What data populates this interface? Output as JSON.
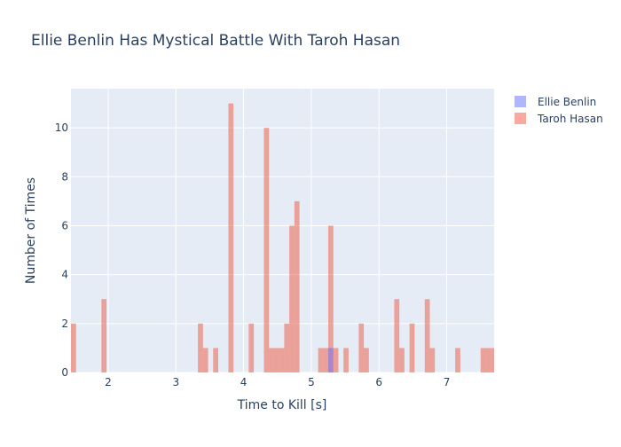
{
  "chart_data": {
    "type": "bar",
    "title": "Ellie Benlin Has Mystical Battle With Taroh Hasan",
    "xlabel": "Time to Kill [s]",
    "ylabel": "Number of Times",
    "xlim": [
      1.45,
      7.7
    ],
    "ylim": [
      0,
      11.6
    ],
    "x_ticks": [
      2,
      3,
      4,
      5,
      6,
      7
    ],
    "y_ticks": [
      0,
      2,
      4,
      6,
      8,
      10
    ],
    "bin_width": 0.075,
    "grid": true,
    "legend_position": "top-right",
    "series": [
      {
        "name": "Ellie Benlin",
        "color": "#636efa",
        "bins": [
          {
            "x0": 5.25,
            "x1": 5.325,
            "count": 1
          }
        ]
      },
      {
        "name": "Taroh Hasan",
        "color": "#ef553b",
        "bins": [
          {
            "x0": 1.45,
            "x1": 1.525,
            "count": 2
          },
          {
            "x0": 1.9,
            "x1": 1.975,
            "count": 3
          },
          {
            "x0": 3.325,
            "x1": 3.4,
            "count": 2
          },
          {
            "x0": 3.4,
            "x1": 3.475,
            "count": 1
          },
          {
            "x0": 3.55,
            "x1": 3.625,
            "count": 1
          },
          {
            "x0": 3.775,
            "x1": 3.85,
            "count": 11
          },
          {
            "x0": 4.075,
            "x1": 4.15,
            "count": 2
          },
          {
            "x0": 4.3,
            "x1": 4.375,
            "count": 10
          },
          {
            "x0": 4.375,
            "x1": 4.45,
            "count": 1
          },
          {
            "x0": 4.45,
            "x1": 4.525,
            "count": 1
          },
          {
            "x0": 4.525,
            "x1": 4.6,
            "count": 1
          },
          {
            "x0": 4.6,
            "x1": 4.675,
            "count": 2
          },
          {
            "x0": 4.675,
            "x1": 4.75,
            "count": 6
          },
          {
            "x0": 4.75,
            "x1": 4.825,
            "count": 7
          },
          {
            "x0": 5.1,
            "x1": 5.175,
            "count": 1
          },
          {
            "x0": 5.175,
            "x1": 5.25,
            "count": 1
          },
          {
            "x0": 5.25,
            "x1": 5.325,
            "count": 6
          },
          {
            "x0": 5.325,
            "x1": 5.4,
            "count": 1
          },
          {
            "x0": 5.475,
            "x1": 5.55,
            "count": 1
          },
          {
            "x0": 5.7,
            "x1": 5.775,
            "count": 2
          },
          {
            "x0": 5.775,
            "x1": 5.85,
            "count": 1
          },
          {
            "x0": 6.225,
            "x1": 6.3,
            "count": 3
          },
          {
            "x0": 6.3,
            "x1": 6.375,
            "count": 1
          },
          {
            "x0": 6.45,
            "x1": 6.525,
            "count": 2
          },
          {
            "x0": 6.675,
            "x1": 6.75,
            "count": 3
          },
          {
            "x0": 6.75,
            "x1": 6.825,
            "count": 1
          },
          {
            "x0": 7.125,
            "x1": 7.2,
            "count": 1
          },
          {
            "x0": 7.5,
            "x1": 7.575,
            "count": 1
          },
          {
            "x0": 7.575,
            "x1": 7.65,
            "count": 1
          },
          {
            "x0": 7.65,
            "x1": 7.7,
            "count": 1
          }
        ]
      }
    ]
  }
}
